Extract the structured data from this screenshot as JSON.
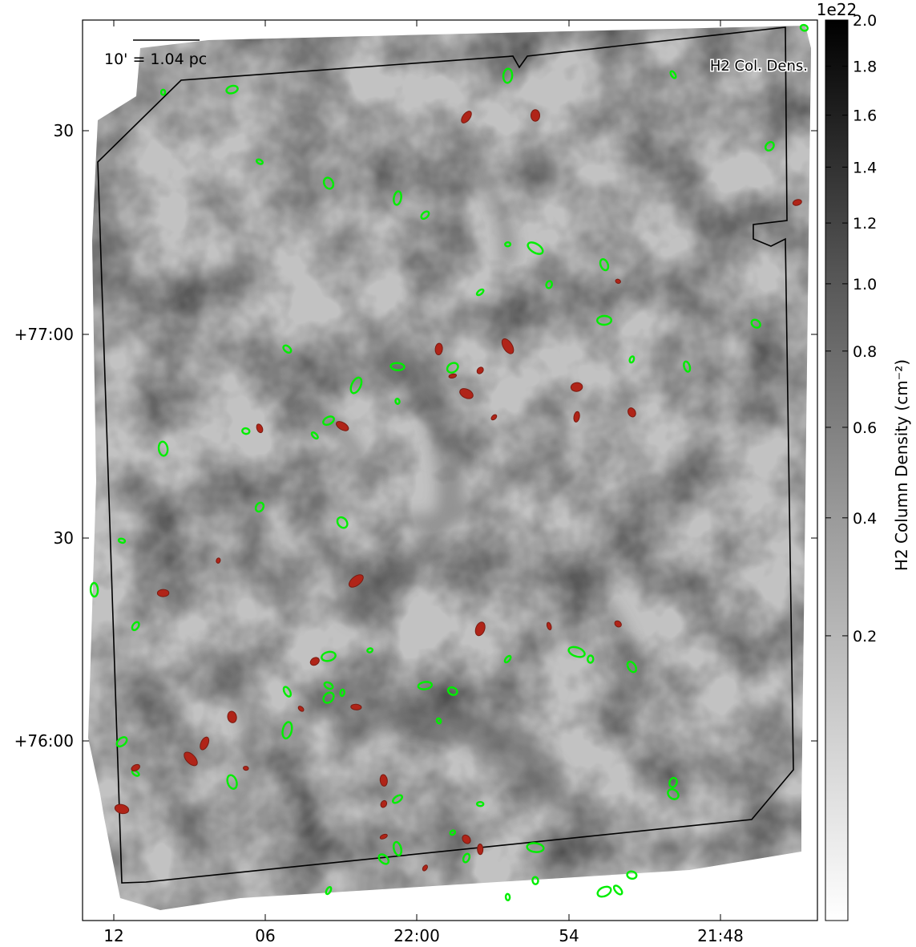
{
  "chart_data": {
    "type": "scatter",
    "map": "H2 column density image",
    "label": "H2 Col. Dens.",
    "scale_bar_label": "10' = 1.04 pc",
    "x_tick_labels": [
      "12",
      "06",
      "22:00",
      "54",
      "21:48"
    ],
    "y_tick_labels": [
      "30",
      "+77:00",
      "30",
      "+76:00"
    ],
    "colorbar": {
      "label": "H$_2$ Column Density (cm$^{-2}$)",
      "label_plain": "H2 Column Density (cm⁻²)",
      "multiplier": "1e22",
      "tick_labels": [
        "2.0",
        "1.8",
        "1.6",
        "1.4",
        "1.2",
        "1.0",
        "0.8",
        "0.6",
        "0.4",
        "0.2"
      ],
      "tick_values": [
        2.0,
        1.8,
        1.6,
        1.4,
        1.2,
        1.0,
        0.8,
        0.6,
        0.4,
        0.2
      ],
      "min": 0.0,
      "max": 2.0,
      "scale": "sqrt",
      "colormap": "gray_r"
    },
    "marker_colors": {
      "green": "#00ee00",
      "red": "#b02418"
    },
    "ra_range_label": [
      "22:12",
      "21:46"
    ],
    "dec_range_label": [
      "+75:45",
      "+77:35"
    ],
    "series": [
      {
        "color": "green",
        "points": [
          [
            -47,
            2.2
          ],
          [
            -57,
            1.6
          ],
          [
            -42,
            1.7
          ],
          [
            -0.5,
            -9.5
          ],
          [
            -10,
            -1.0
          ],
          [
            -22,
            -0.8
          ],
          [
            -3,
            12.0
          ],
          [
            -53,
            11.5
          ],
          [
            -40,
            14.8
          ],
          [
            -35,
            18.7
          ],
          [
            -30,
            21.4
          ],
          [
            -28,
            24.5
          ],
          [
            -22,
            29.8
          ],
          [
            -20,
            30.5
          ],
          [
            -15,
            33.5
          ],
          [
            -19,
            37.1
          ],
          [
            -24,
            38.5
          ],
          [
            -15,
            43.6
          ],
          [
            -4,
            44.2
          ],
          [
            -9,
            52.0
          ],
          [
            -13,
            50.7
          ],
          [
            -26,
            52.2
          ],
          [
            -30,
            52.0
          ],
          [
            -38,
            48.8
          ],
          [
            -30,
            58.3
          ],
          [
            -33,
            55.4
          ],
          [
            -35,
            61.8
          ],
          [
            -41,
            63.7
          ],
          [
            -36,
            64.5
          ],
          [
            -47,
            66.9
          ],
          [
            -40,
            77.5
          ],
          [
            -53,
            81.5
          ],
          [
            -50,
            83.6
          ],
          [
            -34,
            80.3
          ],
          [
            -52,
            92.5
          ],
          [
            -49,
            99.1
          ],
          [
            -32,
            103.5
          ],
          [
            -17,
            103.8
          ],
          [
            -13,
            106.5
          ],
          [
            -16,
            105.1
          ],
          [
            -22,
            105.1
          ],
          [
            -35,
            104.6
          ],
          [
            -26,
            110.9
          ],
          [
            -38,
            111.0
          ],
          [
            -34,
            111.2
          ],
          [
            -35,
            112.1
          ],
          [
            -28,
            109.9
          ],
          [
            -35,
            109.9
          ],
          [
            -27,
            116.3
          ],
          [
            -38,
            118.0
          ],
          [
            -50,
            120.1
          ],
          [
            -55,
            129.9
          ],
          [
            -49,
            125.8
          ],
          [
            -42,
            127.4
          ],
          [
            -10,
            127.5
          ],
          [
            -30,
            130.5
          ],
          [
            -24,
            131.4
          ],
          [
            -10,
            129.6
          ],
          [
            -30,
            139.5
          ],
          [
            -25,
            141.2
          ],
          [
            -26,
            136.6
          ],
          [
            -20,
            139.3
          ],
          [
            -31,
            141.4
          ],
          [
            -20,
            145.3
          ],
          [
            -35,
            147.1
          ],
          [
            -15,
            147.3
          ],
          [
            -13,
            144.3
          ],
          [
            -14,
            147.0
          ],
          [
            -22,
            148.3
          ]
        ]
      },
      {
        "color": "red",
        "points": [
          [
            -20,
            6.4
          ],
          [
            -25,
            6.7
          ],
          [
            -1,
            22.2
          ],
          [
            -14,
            36.5
          ],
          [
            -22,
            48.3
          ],
          [
            -27,
            48.8
          ],
          [
            -24,
            52.7
          ],
          [
            -26,
            53.7
          ],
          [
            -25,
            56.9
          ],
          [
            -13,
            60.3
          ],
          [
            -17,
            61.1
          ],
          [
            -23,
            61.2
          ],
          [
            -17,
            55.7
          ],
          [
            -34,
            62.8
          ],
          [
            -40,
            63.2
          ],
          [
            -43,
            87.2
          ],
          [
            -33,
            90.9
          ],
          [
            -47,
            93.1
          ],
          [
            -14,
            98.7
          ],
          [
            -19,
            99.1
          ],
          [
            -24,
            99.6
          ],
          [
            -36,
            105.5
          ],
          [
            -33,
            113.8
          ],
          [
            -37,
            114.1
          ],
          [
            -42,
            115.6
          ],
          [
            -44,
            120.4
          ],
          [
            -49,
            124.8
          ],
          [
            -41,
            124.9
          ],
          [
            -45,
            123.2
          ],
          [
            -31,
            127.1
          ],
          [
            -31,
            131.4
          ],
          [
            -31,
            137.3
          ],
          [
            -50,
            132.3
          ],
          [
            -25,
            137.8
          ],
          [
            -24,
            139.6
          ],
          [
            -28,
            143.0
          ]
        ]
      }
    ]
  }
}
